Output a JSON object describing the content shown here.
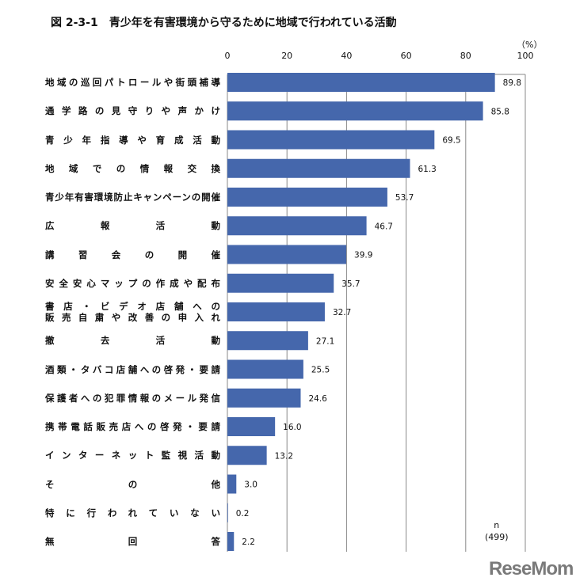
{
  "chart_data": {
    "type": "bar",
    "orientation": "horizontal",
    "title": "図 2-3-1　青少年を有害環境から守るために地域で行われている活動",
    "unit_label": "（%）",
    "xlim": [
      0,
      100
    ],
    "ticks": [
      0,
      20,
      40,
      60,
      80,
      100
    ],
    "grid": true,
    "bar_color": "#4567AC",
    "categories": [
      "地域の巡回パトロールや街頭補導",
      "通学路の見守りや声かけ",
      "青少年指導や育成活動",
      "地域での情報交換",
      "青少年有害環境防止キャンペーンの開催",
      "広報活動",
      "講習会の開催",
      "安全安心マップの作成や配布",
      "書店・ビデオ店舗への販売自粛や改善の申入れ",
      "撤去活動",
      "酒類・タバコ店舗への啓発・要請",
      "保護者への犯罪情報のメール発信",
      "携帯電話販売店への啓発・要請",
      "インターネット監視活動",
      "その他",
      "特に行われていない",
      "無回答"
    ],
    "label_lines": [
      [
        "地域の巡回パトロールや街頭補導"
      ],
      [
        "通学路の見守りや声かけ"
      ],
      [
        "青少年指導や育成活動"
      ],
      [
        "地域での情報交換"
      ],
      [
        "青少年有害環境防止キャンペーンの開催"
      ],
      [
        "広報活動"
      ],
      [
        "講習会の開催"
      ],
      [
        "安全安心マップの作成や配布"
      ],
      [
        "書店・ビデオ店舗への",
        "販売自粛や改善の申入れ"
      ],
      [
        "撤去活動"
      ],
      [
        "酒類・タバコ店舗への啓発・要請"
      ],
      [
        "保護者への犯罪情報のメール発信"
      ],
      [
        "携帯電話販売店への啓発・要請"
      ],
      [
        "インターネット監視活動"
      ],
      [
        "その他"
      ],
      [
        "特に行われていない"
      ],
      [
        "無回答"
      ]
    ],
    "values": [
      89.8,
      85.8,
      69.5,
      61.3,
      53.7,
      46.7,
      39.9,
      35.7,
      32.7,
      27.1,
      25.5,
      24.6,
      16.0,
      13.2,
      3.0,
      0.2,
      2.2
    ],
    "sample_size_label": "n",
    "sample_size": "(499)"
  },
  "logo": "ReseMom"
}
